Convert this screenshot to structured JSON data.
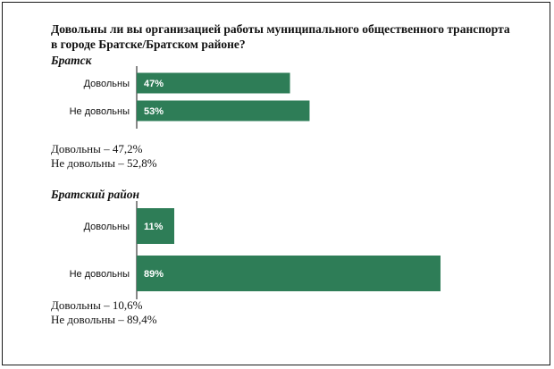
{
  "title": "Довольны ли вы организацией работы муниципального общественного транспорта  в городе Братске/Братском  районе?",
  "colors": {
    "bar": "#2e7d57",
    "axis": "#111111"
  },
  "chart_data": [
    {
      "type": "bar",
      "orientation": "horizontal",
      "title": "Братск",
      "categories": [
        "Довольны",
        "Не довольны"
      ],
      "values": [
        47,
        53
      ],
      "value_labels": [
        "47%",
        "53%"
      ],
      "xlim": [
        0,
        100
      ],
      "grid": false,
      "summary": [
        "Довольны – 47,2%",
        "Не довольны – 52,8%"
      ]
    },
    {
      "type": "bar",
      "orientation": "horizontal",
      "title": "Братский район",
      "categories": [
        "Довольны",
        "Не довольны"
      ],
      "values": [
        11,
        89
      ],
      "value_labels": [
        "11%",
        "89%"
      ],
      "xlim": [
        0,
        100
      ],
      "grid": false,
      "summary": [
        "Довольны – 10,6%",
        "Не довольны – 89,4%"
      ]
    }
  ]
}
